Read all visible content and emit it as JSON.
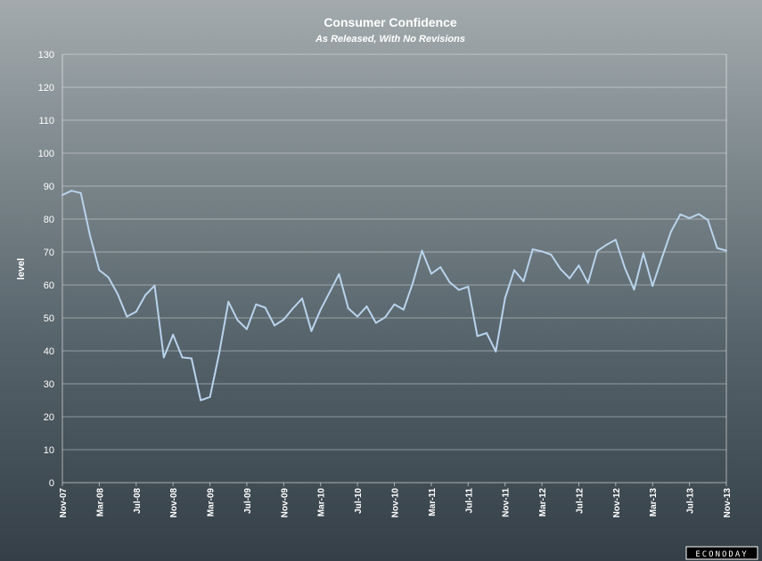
{
  "chart_data": {
    "type": "line",
    "title": "Consumer Confidence",
    "subtitle": "As Released, With No Revisions",
    "ylabel": "level",
    "xlabel": "",
    "ylim": [
      0,
      130
    ],
    "yticks": [
      0,
      10,
      20,
      30,
      40,
      50,
      60,
      70,
      80,
      90,
      100,
      110,
      120,
      130
    ],
    "grid": true,
    "legend": "none",
    "x_tick_labels": [
      "Nov-07",
      "Mar-08",
      "Jul-08",
      "Nov-08",
      "Mar-09",
      "Jul-09",
      "Nov-09",
      "Mar-10",
      "Jul-10",
      "Nov-10",
      "Mar-11",
      "Jul-11",
      "Nov-11",
      "Mar-12",
      "Jul-12",
      "Nov-12",
      "Mar-13",
      "Jul-13",
      "Nov-13"
    ],
    "x": [
      "Nov-07",
      "Dec-07",
      "Jan-08",
      "Feb-08",
      "Mar-08",
      "Apr-08",
      "May-08",
      "Jun-08",
      "Jul-08",
      "Aug-08",
      "Sep-08",
      "Oct-08",
      "Nov-08",
      "Dec-08",
      "Jan-09",
      "Feb-09",
      "Mar-09",
      "Apr-09",
      "May-09",
      "Jun-09",
      "Jul-09",
      "Aug-09",
      "Sep-09",
      "Oct-09",
      "Nov-09",
      "Dec-09",
      "Jan-10",
      "Feb-10",
      "Mar-10",
      "Apr-10",
      "May-10",
      "Jun-10",
      "Jul-10",
      "Aug-10",
      "Sep-10",
      "Oct-10",
      "Nov-10",
      "Dec-10",
      "Jan-11",
      "Feb-11",
      "Mar-11",
      "Apr-11",
      "May-11",
      "Jun-11",
      "Jul-11",
      "Aug-11",
      "Sep-11",
      "Oct-11",
      "Nov-11",
      "Dec-11",
      "Jan-12",
      "Feb-12",
      "Mar-12",
      "Apr-12",
      "May-12",
      "Jun-12",
      "Jul-12",
      "Aug-12",
      "Sep-12",
      "Oct-12",
      "Nov-12",
      "Dec-12",
      "Jan-13",
      "Feb-13",
      "Mar-13",
      "Apr-13",
      "May-13",
      "Jun-13",
      "Jul-13",
      "Aug-13",
      "Sep-13",
      "Oct-13",
      "Nov-13"
    ],
    "series": [
      {
        "name": "",
        "color": "#b9d3ec",
        "values": [
          87.3,
          88.6,
          87.9,
          75.0,
          64.5,
          62.3,
          57.2,
          50.4,
          51.9,
          56.9,
          59.8,
          38.0,
          44.9,
          38.0,
          37.7,
          25.0,
          26.0,
          39.2,
          54.9,
          49.3,
          46.6,
          54.1,
          53.1,
          47.7,
          49.5,
          52.9,
          55.9,
          46.0,
          52.5,
          57.9,
          63.3,
          52.9,
          50.4,
          53.5,
          48.5,
          50.2,
          54.1,
          52.5,
          60.6,
          70.4,
          63.4,
          65.4,
          60.8,
          58.5,
          59.5,
          44.5,
          45.4,
          39.8,
          56.0,
          64.5,
          61.1,
          70.8,
          70.2,
          69.2,
          64.9,
          62.0,
          65.9,
          60.6,
          70.3,
          72.2,
          73.7,
          65.1,
          58.6,
          69.6,
          59.7,
          68.1,
          76.2,
          81.4,
          80.3,
          81.5,
          79.7,
          71.2,
          70.4
        ]
      }
    ]
  },
  "watermark": "ECONODAY"
}
